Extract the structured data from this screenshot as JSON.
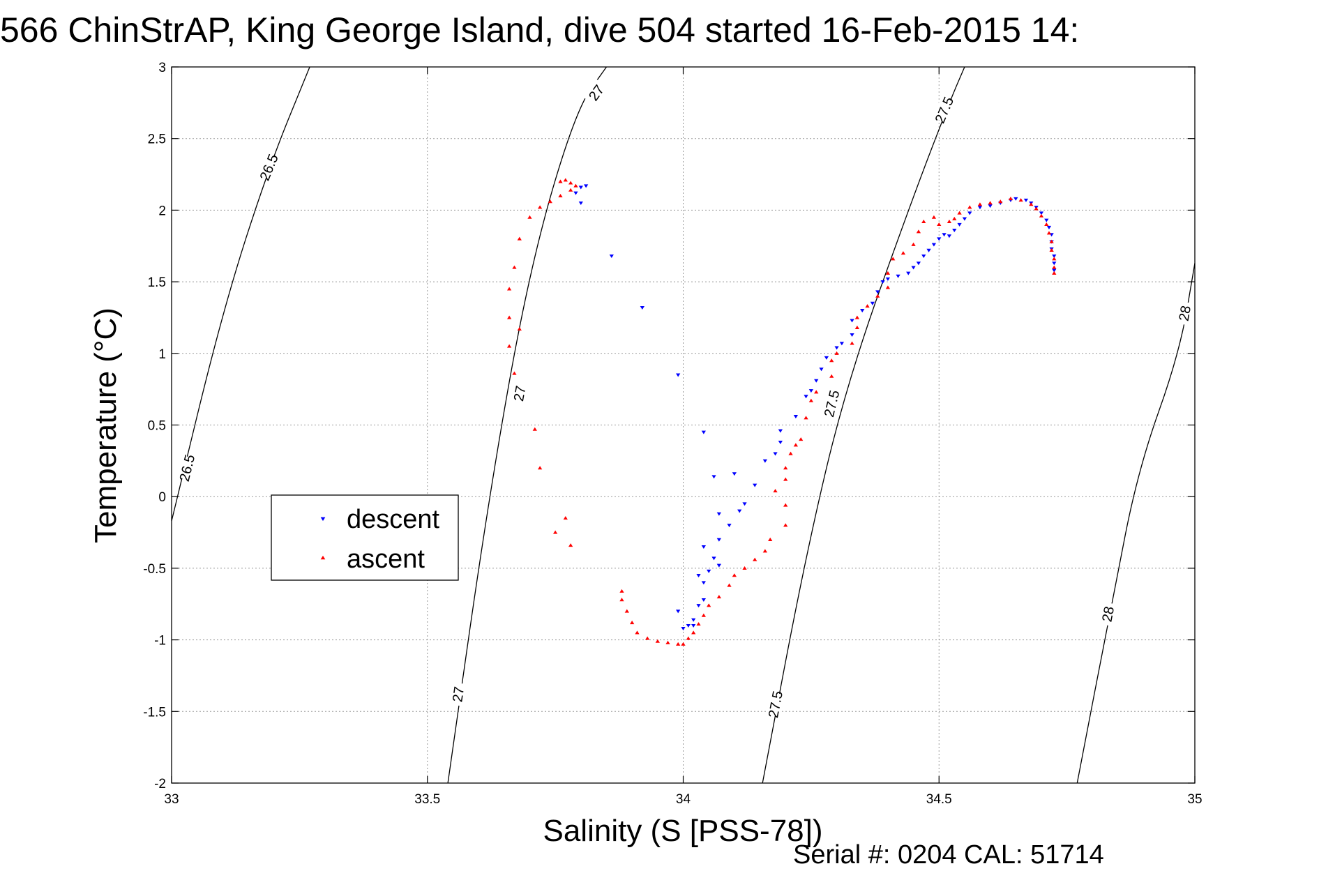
{
  "chart_data": {
    "type": "scatter",
    "title": "566 ChinStrAP, King George Island, dive 504 started 16-Feb-2015 14:",
    "xlabel": "Salinity (S [PSS-78])",
    "ylabel": "Temperature (°C)",
    "xlim": [
      33,
      35
    ],
    "ylim": [
      -2,
      3
    ],
    "xticks": [
      33,
      33.5,
      34,
      34.5,
      35
    ],
    "xtick_labels": [
      "33",
      "33.5",
      "34",
      "34.5",
      "35"
    ],
    "yticks": [
      -2,
      -1.5,
      -1,
      -0.5,
      0,
      0.5,
      1,
      1.5,
      2,
      2.5,
      3
    ],
    "ytick_labels": [
      "-2",
      "-1.5",
      "-1",
      "-0.5",
      "0",
      "0.5",
      "1",
      "1.5",
      "2",
      "2.5",
      "3"
    ],
    "grid": true,
    "legend_position": "center-left",
    "footer": "Serial #: 0204  CAL: 51714",
    "series": [
      {
        "name": "descent",
        "color": "#0000ff",
        "marker": "triangle-down",
        "points": [
          [
            33.8,
            2.16
          ],
          [
            33.81,
            2.17
          ],
          [
            33.79,
            2.12
          ],
          [
            33.8,
            2.05
          ],
          [
            33.86,
            1.68
          ],
          [
            33.92,
            1.32
          ],
          [
            33.99,
            0.85
          ],
          [
            34.04,
            0.45
          ],
          [
            34.06,
            0.14
          ],
          [
            34.1,
            0.16
          ],
          [
            34.11,
            -0.1
          ],
          [
            34.07,
            -0.12
          ],
          [
            34.07,
            -0.3
          ],
          [
            34.07,
            -0.48
          ],
          [
            34.06,
            -0.43
          ],
          [
            34.05,
            -0.52
          ],
          [
            34.04,
            -0.6
          ],
          [
            34.04,
            -0.72
          ],
          [
            34.03,
            -0.76
          ],
          [
            34.02,
            -0.86
          ],
          [
            34.01,
            -0.9
          ],
          [
            34.0,
            -0.92
          ],
          [
            34.02,
            -0.9
          ],
          [
            33.99,
            -0.8
          ],
          [
            34.03,
            -0.55
          ],
          [
            34.04,
            -0.35
          ],
          [
            34.09,
            -0.2
          ],
          [
            34.12,
            -0.05
          ],
          [
            34.14,
            0.08
          ],
          [
            34.16,
            0.25
          ],
          [
            34.18,
            0.3
          ],
          [
            34.19,
            0.38
          ],
          [
            34.19,
            0.46
          ],
          [
            34.22,
            0.56
          ],
          [
            34.24,
            0.7
          ],
          [
            34.25,
            0.74
          ],
          [
            34.26,
            0.81
          ],
          [
            34.27,
            0.89
          ],
          [
            34.28,
            0.97
          ],
          [
            34.3,
            1.04
          ],
          [
            34.31,
            1.07
          ],
          [
            34.33,
            1.13
          ],
          [
            34.33,
            1.23
          ],
          [
            34.35,
            1.3
          ],
          [
            34.37,
            1.35
          ],
          [
            34.38,
            1.43
          ],
          [
            34.39,
            1.5
          ],
          [
            34.4,
            1.52
          ],
          [
            34.42,
            1.54
          ],
          [
            34.44,
            1.56
          ],
          [
            34.45,
            1.6
          ],
          [
            34.46,
            1.63
          ],
          [
            34.47,
            1.68
          ],
          [
            34.48,
            1.72
          ],
          [
            34.49,
            1.76
          ],
          [
            34.5,
            1.8
          ],
          [
            34.51,
            1.83
          ],
          [
            34.52,
            1.82
          ],
          [
            34.53,
            1.86
          ],
          [
            34.54,
            1.9
          ],
          [
            34.55,
            1.94
          ],
          [
            34.56,
            1.98
          ],
          [
            34.58,
            2.02
          ],
          [
            34.6,
            2.03
          ],
          [
            34.62,
            2.05
          ],
          [
            34.64,
            2.07
          ],
          [
            34.65,
            2.08
          ],
          [
            34.67,
            2.07
          ],
          [
            34.68,
            2.05
          ],
          [
            34.69,
            2.02
          ],
          [
            34.7,
            1.98
          ],
          [
            34.71,
            1.93
          ],
          [
            34.715,
            1.88
          ],
          [
            34.72,
            1.83
          ],
          [
            34.72,
            1.78
          ],
          [
            34.72,
            1.73
          ],
          [
            34.725,
            1.68
          ],
          [
            34.725,
            1.63
          ],
          [
            34.725,
            1.58
          ]
        ]
      },
      {
        "name": "ascent",
        "color": "#ff0000",
        "marker": "triangle-up",
        "points": [
          [
            34.725,
            1.56
          ],
          [
            34.725,
            1.6
          ],
          [
            34.725,
            1.66
          ],
          [
            34.72,
            1.72
          ],
          [
            34.72,
            1.78
          ],
          [
            34.715,
            1.84
          ],
          [
            34.71,
            1.9
          ],
          [
            34.7,
            1.96
          ],
          [
            34.69,
            2.01
          ],
          [
            34.68,
            2.04
          ],
          [
            34.66,
            2.07
          ],
          [
            34.64,
            2.08
          ],
          [
            34.62,
            2.06
          ],
          [
            34.6,
            2.05
          ],
          [
            34.58,
            2.04
          ],
          [
            34.56,
            2.02
          ],
          [
            34.54,
            1.98
          ],
          [
            34.53,
            1.94
          ],
          [
            34.52,
            1.92
          ],
          [
            34.5,
            1.9
          ],
          [
            34.49,
            1.95
          ],
          [
            34.47,
            1.92
          ],
          [
            34.46,
            1.85
          ],
          [
            34.45,
            1.76
          ],
          [
            34.43,
            1.7
          ],
          [
            34.41,
            1.66
          ],
          [
            34.4,
            1.56
          ],
          [
            34.4,
            1.46
          ],
          [
            34.38,
            1.4
          ],
          [
            34.36,
            1.33
          ],
          [
            34.34,
            1.25
          ],
          [
            34.34,
            1.18
          ],
          [
            34.33,
            1.07
          ],
          [
            34.3,
            1.0
          ],
          [
            34.29,
            0.95
          ],
          [
            34.29,
            0.84
          ],
          [
            34.26,
            0.73
          ],
          [
            34.25,
            0.67
          ],
          [
            34.24,
            0.55
          ],
          [
            34.23,
            0.4
          ],
          [
            34.22,
            0.36
          ],
          [
            34.21,
            0.3
          ],
          [
            34.2,
            0.2
          ],
          [
            34.2,
            0.12
          ],
          [
            34.18,
            0.04
          ],
          [
            34.2,
            -0.06
          ],
          [
            34.2,
            -0.2
          ],
          [
            34.17,
            -0.3
          ],
          [
            34.16,
            -0.38
          ],
          [
            34.14,
            -0.44
          ],
          [
            34.12,
            -0.5
          ],
          [
            34.1,
            -0.55
          ],
          [
            34.09,
            -0.62
          ],
          [
            34.07,
            -0.7
          ],
          [
            34.05,
            -0.76
          ],
          [
            34.04,
            -0.83
          ],
          [
            34.03,
            -0.89
          ],
          [
            34.02,
            -0.95
          ],
          [
            34.01,
            -0.99
          ],
          [
            34.0,
            -1.03
          ],
          [
            33.99,
            -1.03
          ],
          [
            33.97,
            -1.02
          ],
          [
            33.95,
            -1.01
          ],
          [
            33.93,
            -0.99
          ],
          [
            33.91,
            -0.95
          ],
          [
            33.9,
            -0.88
          ],
          [
            33.89,
            -0.8
          ],
          [
            33.88,
            -0.72
          ],
          [
            33.88,
            -0.66
          ],
          [
            33.71,
            0.47
          ],
          [
            33.72,
            0.2
          ],
          [
            33.77,
            -0.15
          ],
          [
            33.78,
            -0.34
          ],
          [
            33.75,
            -0.25
          ],
          [
            33.67,
            0.86
          ],
          [
            33.66,
            1.05
          ],
          [
            33.68,
            1.17
          ],
          [
            33.66,
            1.25
          ],
          [
            33.66,
            1.45
          ],
          [
            33.67,
            1.6
          ],
          [
            33.68,
            1.8
          ],
          [
            33.7,
            1.95
          ],
          [
            33.72,
            2.02
          ],
          [
            33.74,
            2.06
          ],
          [
            33.76,
            2.1
          ],
          [
            33.78,
            2.14
          ],
          [
            33.78,
            2.19
          ],
          [
            33.77,
            2.21
          ],
          [
            33.76,
            2.2
          ],
          [
            33.79,
            2.17
          ]
        ]
      }
    ],
    "isopycnals": [
      {
        "sigma": "26.5",
        "points": [
          [
            33.0,
            -0.17
          ],
          [
            33.1,
            1.3
          ],
          [
            33.19,
            2.3
          ],
          [
            33.27,
            3.0
          ]
        ],
        "labels": [
          {
            "text": "26.5",
            "at": [
              33.19,
              2.3
            ]
          },
          {
            "text": "26.5",
            "at": [
              33.03,
              0.2
            ]
          }
        ]
      },
      {
        "sigma": "27",
        "points": [
          [
            33.54,
            -2.0
          ],
          [
            33.62,
            0.0
          ],
          [
            33.7,
            1.6
          ],
          [
            33.79,
            2.7
          ],
          [
            33.85,
            3.0
          ]
        ],
        "labels": [
          {
            "text": "27",
            "at": [
              33.83,
              2.82
            ]
          },
          {
            "text": "27",
            "at": [
              33.68,
              0.72
            ]
          },
          {
            "text": "27",
            "at": [
              33.56,
              -1.38
            ]
          }
        ]
      },
      {
        "sigma": "27.5",
        "points": [
          [
            34.155,
            -2.0
          ],
          [
            34.24,
            -0.4
          ],
          [
            34.32,
            0.8
          ],
          [
            34.45,
            2.1
          ],
          [
            34.52,
            2.75
          ],
          [
            34.55,
            3.0
          ]
        ],
        "labels": [
          {
            "text": "27.5",
            "at": [
              34.51,
              2.7
            ]
          },
          {
            "text": "27.5",
            "at": [
              34.29,
              0.65
            ]
          },
          {
            "text": "27.5",
            "at": [
              34.18,
              -1.45
            ]
          }
        ]
      },
      {
        "sigma": "28",
        "points": [
          [
            34.77,
            -2.0
          ],
          [
            34.84,
            -0.7
          ],
          [
            34.89,
            0.2
          ],
          [
            34.97,
            1.0
          ],
          [
            35.0,
            1.63
          ]
        ],
        "labels": [
          {
            "text": "28",
            "at": [
              34.98,
              1.28
            ]
          },
          {
            "text": "28",
            "at": [
              34.83,
              -0.82
            ]
          }
        ]
      }
    ]
  }
}
